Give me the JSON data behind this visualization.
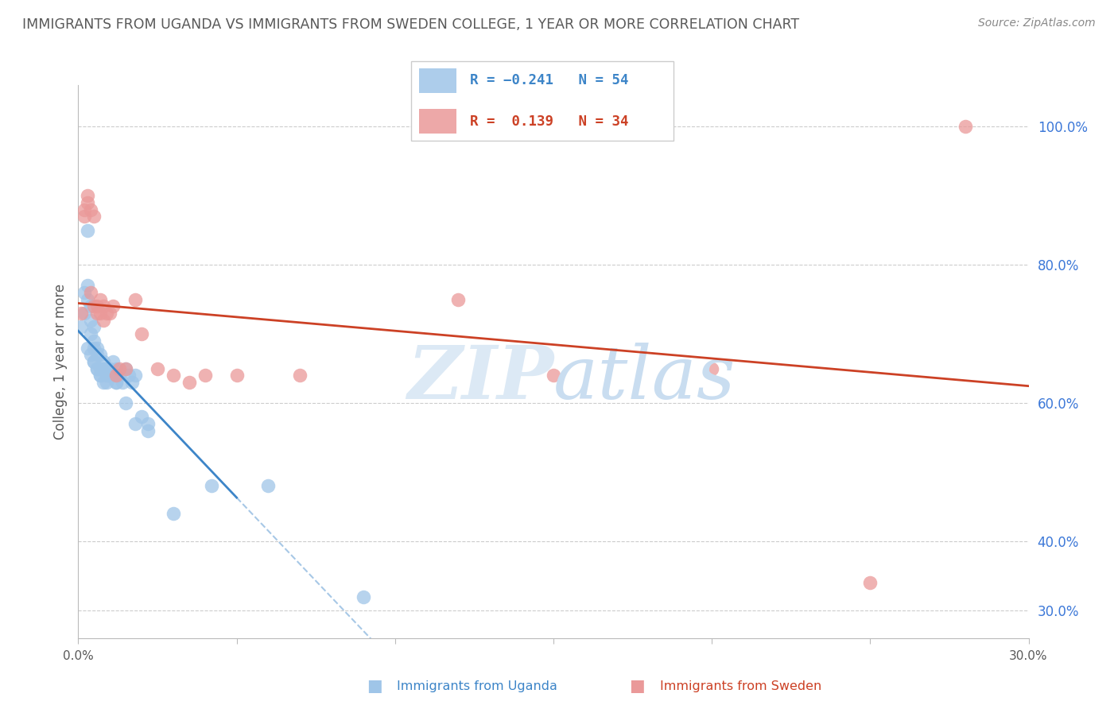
{
  "title": "IMMIGRANTS FROM UGANDA VS IMMIGRANTS FROM SWEDEN COLLEGE, 1 YEAR OR MORE CORRELATION CHART",
  "source": "Source: ZipAtlas.com",
  "ylabel": "College, 1 year or more",
  "y_ticks": [
    0.3,
    0.4,
    0.6,
    0.8,
    1.0
  ],
  "y_tick_labels": [
    "30.0%",
    "40.0%",
    "60.0%",
    "80.0%",
    "100.0%"
  ],
  "xlim": [
    0.0,
    0.3
  ],
  "ylim": [
    0.26,
    1.06
  ],
  "series1_color": "#9fc5e8",
  "series2_color": "#ea9999",
  "series1_trend_color": "#3d85c8",
  "series2_trend_color": "#cc4125",
  "grid_color": "#cccccc",
  "axis_label_color": "#3c78d8",
  "title_color": "#595959",
  "source_color": "#888888",
  "background_color": "#ffffff",
  "uganda_x": [
    0.001,
    0.002,
    0.002,
    0.003,
    0.003,
    0.003,
    0.004,
    0.004,
    0.004,
    0.005,
    0.005,
    0.005,
    0.005,
    0.006,
    0.006,
    0.006,
    0.007,
    0.007,
    0.007,
    0.008,
    0.008,
    0.008,
    0.009,
    0.009,
    0.01,
    0.01,
    0.011,
    0.011,
    0.012,
    0.012,
    0.013,
    0.014,
    0.015,
    0.016,
    0.017,
    0.018,
    0.02,
    0.022,
    0.003,
    0.004,
    0.005,
    0.006,
    0.007,
    0.008,
    0.009,
    0.01,
    0.012,
    0.015,
    0.018,
    0.022,
    0.03,
    0.042,
    0.06,
    0.09
  ],
  "uganda_y": [
    0.71,
    0.73,
    0.76,
    0.77,
    0.75,
    0.85,
    0.74,
    0.72,
    0.7,
    0.71,
    0.69,
    0.68,
    0.66,
    0.68,
    0.67,
    0.65,
    0.67,
    0.65,
    0.64,
    0.66,
    0.65,
    0.63,
    0.65,
    0.63,
    0.65,
    0.64,
    0.66,
    0.64,
    0.65,
    0.63,
    0.64,
    0.63,
    0.65,
    0.64,
    0.63,
    0.64,
    0.58,
    0.57,
    0.68,
    0.67,
    0.66,
    0.65,
    0.64,
    0.65,
    0.64,
    0.64,
    0.63,
    0.6,
    0.57,
    0.56,
    0.44,
    0.48,
    0.48,
    0.32
  ],
  "sweden_x": [
    0.001,
    0.002,
    0.002,
    0.003,
    0.003,
    0.004,
    0.004,
    0.005,
    0.005,
    0.006,
    0.006,
    0.007,
    0.007,
    0.008,
    0.008,
    0.009,
    0.01,
    0.011,
    0.012,
    0.013,
    0.015,
    0.018,
    0.02,
    0.025,
    0.03,
    0.035,
    0.04,
    0.05,
    0.07,
    0.12,
    0.15,
    0.2,
    0.25,
    0.28
  ],
  "sweden_y": [
    0.73,
    0.87,
    0.88,
    0.9,
    0.89,
    0.88,
    0.76,
    0.87,
    0.74,
    0.74,
    0.73,
    0.75,
    0.73,
    0.74,
    0.72,
    0.73,
    0.73,
    0.74,
    0.64,
    0.65,
    0.65,
    0.75,
    0.7,
    0.65,
    0.64,
    0.63,
    0.64,
    0.64,
    0.64,
    0.75,
    0.64,
    0.65,
    0.34,
    1.0
  ],
  "uganda_R": -0.241,
  "sweden_R": 0.139,
  "uganda_N": 54,
  "sweden_N": 34,
  "trend_solid_end": 0.05,
  "trend_dash_start": 0.05
}
